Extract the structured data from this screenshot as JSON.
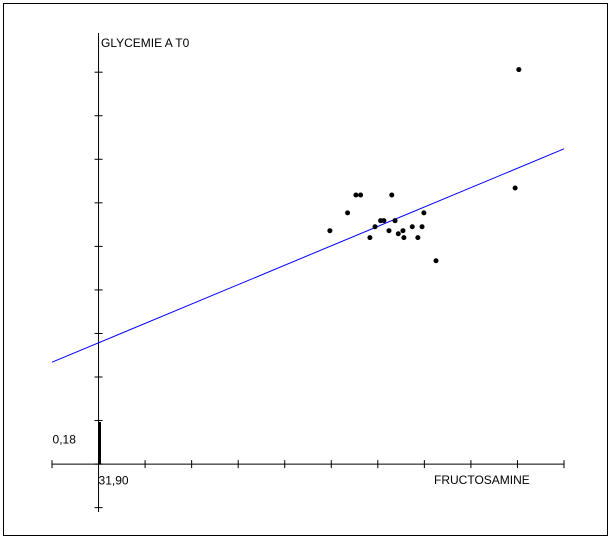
{
  "chart_data": {
    "type": "scatter",
    "x_label": "FRUCTOSAMINE",
    "y_label": "GLYCEMIE A T0",
    "xlim": [
      21.9,
      131.9
    ],
    "ylim": [
      0.07,
      1.17
    ],
    "xticks": [
      {
        "value": 31.9,
        "label": "31,90"
      }
    ],
    "yticks": [
      {
        "value": 0.18,
        "label": "0,18"
      }
    ],
    "x_minor_ticks": [
      21.9,
      31.9,
      41.9,
      51.9,
      61.9,
      71.9,
      81.9,
      91.9,
      101.9,
      111.9,
      121.9,
      131.9
    ],
    "y_minor_ticks": [
      0.08,
      0.18,
      0.28,
      0.38,
      0.48,
      0.58,
      0.68,
      0.78,
      0.88,
      0.98,
      1.08
    ],
    "point_color": "#000000",
    "x": [
      122.2,
      121.4,
      87.2,
      88.2,
      94.9,
      85.4,
      81.6,
      92.5,
      93.2,
      95.6,
      91.3,
      94.3,
      90.2,
      96.3,
      97.3,
      97.5,
      99.3,
      101.8,
      101.4,
      100.5,
      104.4
    ],
    "y": [
      1.086,
      0.814,
      0.798,
      0.798,
      0.798,
      0.757,
      0.716,
      0.739,
      0.739,
      0.739,
      0.725,
      0.716,
      0.7,
      0.709,
      0.716,
      0.7,
      0.725,
      0.757,
      0.725,
      0.7,
      0.647
    ],
    "trendline": {
      "color": "#0000ff",
      "x": [
        21.9,
        131.9
      ],
      "y": [
        0.414,
        0.904
      ]
    }
  }
}
